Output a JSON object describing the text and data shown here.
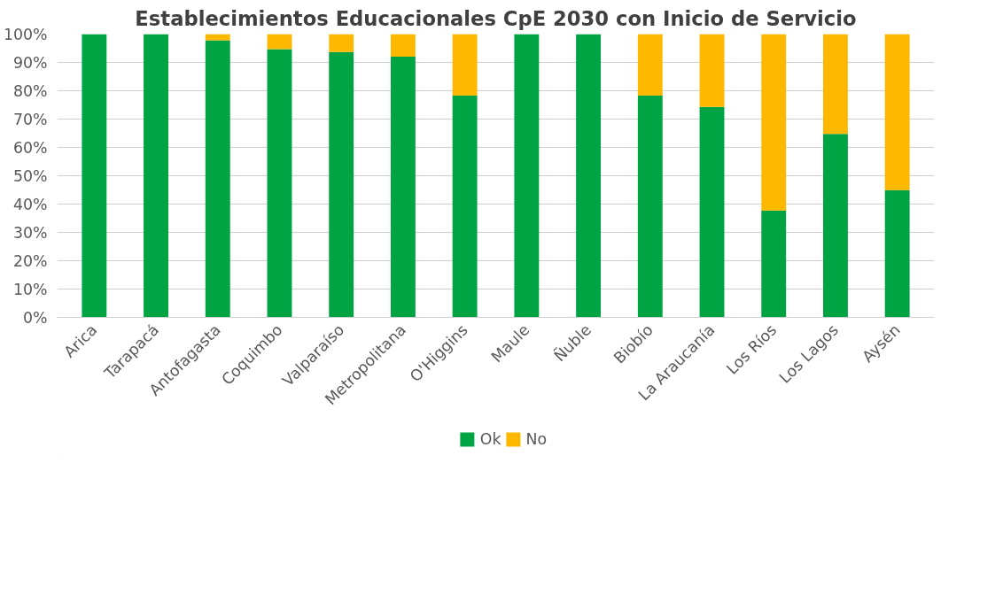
{
  "chart_data": {
    "type": "bar",
    "stacked": true,
    "title": "Establecimientos Educacionales CpE 2030 con Inicio de Servicio",
    "categories": [
      "Arica",
      "Tarapacá",
      "Antofagasta",
      "Coquimbo",
      "Valparaíso",
      "Metropolitana",
      "O'Higgins",
      "Maule",
      "Ñuble",
      "Biobío",
      "La Araucanía",
      "Los Ríos",
      "Los Lagos",
      "Aysén"
    ],
    "series": [
      {
        "name": "Ok",
        "color": "#00a443",
        "values": [
          100,
          100,
          97.8,
          94.7,
          93.7,
          92.0,
          78.3,
          100,
          100,
          78.3,
          74.3,
          37.7,
          64.8,
          44.9
        ]
      },
      {
        "name": "No",
        "color": "#ffb800",
        "values": [
          0,
          0,
          2.2,
          5.3,
          6.3,
          8.0,
          21.7,
          0,
          0,
          21.7,
          25.7,
          62.3,
          35.2,
          55.1
        ]
      }
    ],
    "ylim": [
      0,
      100
    ],
    "yticks": [
      {
        "value": 0,
        "label": "0%"
      },
      {
        "value": 10,
        "label": "10%"
      },
      {
        "value": 20,
        "label": "20%"
      },
      {
        "value": 30,
        "label": "30%"
      },
      {
        "value": 40,
        "label": "40%"
      },
      {
        "value": 50,
        "label": "50%"
      },
      {
        "value": 60,
        "label": "60%"
      },
      {
        "value": 70,
        "label": "70%"
      },
      {
        "value": 80,
        "label": "80%"
      },
      {
        "value": 90,
        "label": "90%"
      },
      {
        "value": 100,
        "label": "100%"
      }
    ],
    "grid": "y",
    "legend": "bottom"
  }
}
